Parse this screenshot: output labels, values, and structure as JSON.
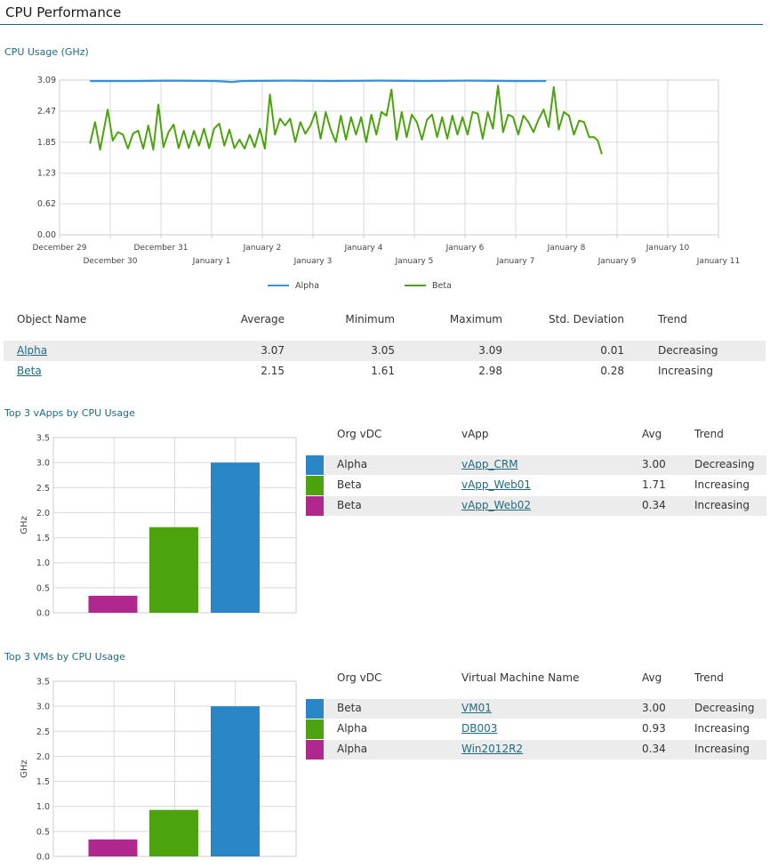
{
  "page": {
    "title": "CPU Performance"
  },
  "cpu_usage": {
    "section_title": "CPU Usage (GHz)",
    "table": {
      "headers": [
        "Object Name",
        "Average",
        "Minimum",
        "Maximum",
        "Std. Deviation",
        "Trend"
      ],
      "rows": [
        {
          "name": "Alpha",
          "average": "3.07",
          "minimum": "3.05",
          "maximum": "3.09",
          "std": "0.01",
          "trend": "Decreasing"
        },
        {
          "name": "Beta",
          "average": "2.15",
          "minimum": "1.61",
          "maximum": "2.98",
          "std": "0.28",
          "trend": "Increasing"
        }
      ]
    }
  },
  "top_vapps": {
    "section_title": "Top 3 vApps by CPU Usage",
    "headers": [
      "Org vDC",
      "vApp",
      "Avg",
      "Trend"
    ],
    "rows": [
      {
        "org": "Alpha",
        "name": "vApp_CRM",
        "avg": "3.00",
        "trend": "Decreasing",
        "color": "#2b86c8"
      },
      {
        "org": "Beta",
        "name": "vApp_Web01",
        "avg": "1.71",
        "trend": "Increasing",
        "color": "#4ca30e"
      },
      {
        "org": "Beta",
        "name": "vApp_Web02",
        "avg": "0.34",
        "trend": "Increasing",
        "color": "#b0278e"
      }
    ]
  },
  "top_vms": {
    "section_title": "Top 3 VMs by CPU Usage",
    "headers": [
      "Org vDC",
      "Virtual Machine Name",
      "Avg",
      "Trend"
    ],
    "rows": [
      {
        "org": "Beta",
        "name": "VM01",
        "avg": "3.00",
        "trend": "Decreasing",
        "color": "#2b86c8"
      },
      {
        "org": "Alpha",
        "name": "DB003",
        "avg": "0.93",
        "trend": "Increasing",
        "color": "#4ca30e"
      },
      {
        "org": "Alpha",
        "name": "Win2012R2",
        "avg": "0.34",
        "trend": "Increasing",
        "color": "#b0278e"
      }
    ]
  },
  "chart_data": [
    {
      "type": "line",
      "title": "",
      "xlabel": "",
      "ylabel": "",
      "ylim": [
        0,
        3.09
      ],
      "yticks": [
        "3.09",
        "2.47",
        "1.85",
        "1.23",
        "0.62",
        "0.00"
      ],
      "x_tick_labels": [
        "December 29",
        "December 30",
        "December 31",
        "January 1",
        "January 2",
        "January 3",
        "January 4",
        "January 5",
        "January 6",
        "January 7",
        "January 8",
        "January 9",
        "January 10",
        "January 11"
      ],
      "x_domain": [
        "December 29",
        "January 11"
      ],
      "grid": true,
      "legend_position": "bottom",
      "series": [
        {
          "name": "Alpha",
          "color": "#3a8fd9",
          "points": [
            [
              0.6,
              3.07
            ],
            [
              1.5,
              3.07
            ],
            [
              2.2,
              3.08
            ],
            [
              3.1,
              3.07
            ],
            [
              3.4,
              3.05
            ],
            [
              3.6,
              3.07
            ],
            [
              4.5,
              3.08
            ],
            [
              5.4,
              3.07
            ],
            [
              6.3,
              3.08
            ],
            [
              7.2,
              3.07
            ],
            [
              8.1,
              3.08
            ],
            [
              9.0,
              3.07
            ],
            [
              9.6,
              3.07
            ]
          ]
        },
        {
          "name": "Beta",
          "color": "#4ca30e",
          "points": [
            [
              0.6,
              1.82
            ],
            [
              0.7,
              2.25
            ],
            [
              0.8,
              1.7
            ],
            [
              0.95,
              2.5
            ],
            [
              1.05,
              1.88
            ],
            [
              1.15,
              2.05
            ],
            [
              1.25,
              2.0
            ],
            [
              1.35,
              1.72
            ],
            [
              1.45,
              2.02
            ],
            [
              1.55,
              2.08
            ],
            [
              1.65,
              1.72
            ],
            [
              1.75,
              2.18
            ],
            [
              1.85,
              1.7
            ],
            [
              1.95,
              2.6
            ],
            [
              2.05,
              1.75
            ],
            [
              2.15,
              2.05
            ],
            [
              2.25,
              2.2
            ],
            [
              2.35,
              1.73
            ],
            [
              2.45,
              2.08
            ],
            [
              2.55,
              1.73
            ],
            [
              2.65,
              2.08
            ],
            [
              2.75,
              1.78
            ],
            [
              2.85,
              2.12
            ],
            [
              2.95,
              1.73
            ],
            [
              3.05,
              2.12
            ],
            [
              3.15,
              2.22
            ],
            [
              3.25,
              1.78
            ],
            [
              3.35,
              2.1
            ],
            [
              3.45,
              1.73
            ],
            [
              3.55,
              1.9
            ],
            [
              3.65,
              1.72
            ],
            [
              3.75,
              2.0
            ],
            [
              3.85,
              1.75
            ],
            [
              3.95,
              2.12
            ],
            [
              4.05,
              1.72
            ],
            [
              4.15,
              2.8
            ],
            [
              4.25,
              2.0
            ],
            [
              4.35,
              2.32
            ],
            [
              4.45,
              2.18
            ],
            [
              4.55,
              2.32
            ],
            [
              4.65,
              1.85
            ],
            [
              4.75,
              2.25
            ],
            [
              4.85,
              2.02
            ],
            [
              4.95,
              2.18
            ],
            [
              5.05,
              2.45
            ],
            [
              5.15,
              1.92
            ],
            [
              5.25,
              2.45
            ],
            [
              5.35,
              2.1
            ],
            [
              5.45,
              1.85
            ],
            [
              5.55,
              2.38
            ],
            [
              5.65,
              1.9
            ],
            [
              5.75,
              2.35
            ],
            [
              5.85,
              2.0
            ],
            [
              5.95,
              2.35
            ],
            [
              6.05,
              1.85
            ],
            [
              6.15,
              2.4
            ],
            [
              6.25,
              2.0
            ],
            [
              6.35,
              2.45
            ],
            [
              6.45,
              2.38
            ],
            [
              6.55,
              2.9
            ],
            [
              6.65,
              1.9
            ],
            [
              6.75,
              2.45
            ],
            [
              6.85,
              1.95
            ],
            [
              6.95,
              2.4
            ],
            [
              7.05,
              2.25
            ],
            [
              7.15,
              1.9
            ],
            [
              7.25,
              2.3
            ],
            [
              7.35,
              2.4
            ],
            [
              7.45,
              1.95
            ],
            [
              7.55,
              2.35
            ],
            [
              7.65,
              1.92
            ],
            [
              7.75,
              2.38
            ],
            [
              7.85,
              2.0
            ],
            [
              7.95,
              2.35
            ],
            [
              8.05,
              2.0
            ],
            [
              8.15,
              2.45
            ],
            [
              8.25,
              2.42
            ],
            [
              8.35,
              1.92
            ],
            [
              8.45,
              2.45
            ],
            [
              8.55,
              2.12
            ],
            [
              8.65,
              2.98
            ],
            [
              8.75,
              2.05
            ],
            [
              8.85,
              2.4
            ],
            [
              8.95,
              2.35
            ],
            [
              9.05,
              2.0
            ],
            [
              9.15,
              2.38
            ],
            [
              9.25,
              2.25
            ],
            [
              9.35,
              2.05
            ],
            [
              9.45,
              2.3
            ],
            [
              9.55,
              2.5
            ],
            [
              9.65,
              2.15
            ],
            [
              9.75,
              2.95
            ],
            [
              9.85,
              2.1
            ],
            [
              9.95,
              2.45
            ],
            [
              10.05,
              2.38
            ],
            [
              10.15,
              2.0
            ],
            [
              10.25,
              2.28
            ],
            [
              10.35,
              2.25
            ],
            [
              10.45,
              1.95
            ],
            [
              10.55,
              1.95
            ],
            [
              10.62,
              1.88
            ],
            [
              10.7,
              1.61
            ]
          ]
        }
      ]
    },
    {
      "type": "bar",
      "title": "",
      "ylabel": "GHz",
      "ylim": [
        0,
        3.5
      ],
      "yticks": [
        "3.5",
        "3.0",
        "2.5",
        "2.0",
        "1.5",
        "1.0",
        "0.5",
        "0.0"
      ],
      "grid": true,
      "series": [
        {
          "name": "vApp_Web02",
          "value": 0.34,
          "color": "#b0278e"
        },
        {
          "name": "vApp_Web01",
          "value": 1.71,
          "color": "#4ca30e"
        },
        {
          "name": "vApp_CRM",
          "value": 3.0,
          "color": "#2b86c8"
        }
      ]
    },
    {
      "type": "bar",
      "title": "",
      "ylabel": "GHz",
      "ylim": [
        0,
        3.5
      ],
      "yticks": [
        "3.5",
        "3.0",
        "2.5",
        "2.0",
        "1.5",
        "1.0",
        "0.5",
        "0.0"
      ],
      "grid": true,
      "series": [
        {
          "name": "Win2012R2",
          "value": 0.34,
          "color": "#b0278e"
        },
        {
          "name": "DB003",
          "value": 0.93,
          "color": "#4ca30e"
        },
        {
          "name": "VM01",
          "value": 3.0,
          "color": "#2b86c8"
        }
      ]
    }
  ]
}
